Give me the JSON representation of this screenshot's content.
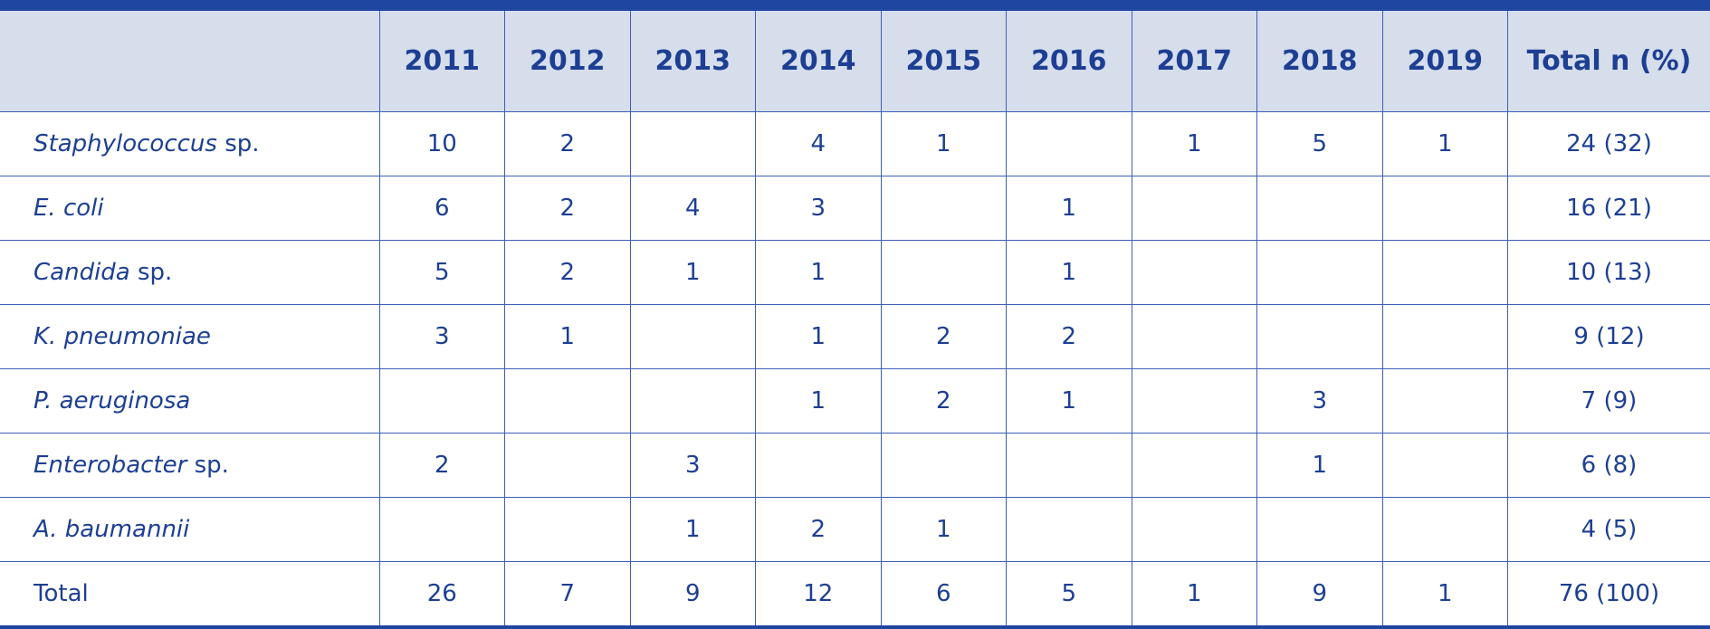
{
  "table": {
    "header": [
      "2011",
      "2012",
      "2013",
      "2014",
      "2015",
      "2016",
      "2017",
      "2018",
      "2019",
      "Total n (%)"
    ],
    "rows": [
      {
        "label": "Staphylococcus",
        "suffix": "sp.",
        "values": [
          10,
          2,
          null,
          4,
          1,
          null,
          1,
          5,
          1
        ],
        "total": "24 (32)"
      },
      {
        "label": "E. coli",
        "values": [
          6,
          2,
          4,
          3,
          null,
          1,
          null,
          null,
          null
        ],
        "total": "16 (21)"
      },
      {
        "label": "Candida",
        "suffix": "sp.",
        "values": [
          5,
          2,
          1,
          1,
          null,
          1,
          null,
          null,
          null
        ],
        "total": "10 (13)"
      },
      {
        "label": "K. pneumoniae",
        "values": [
          3,
          1,
          null,
          1,
          2,
          2,
          null,
          null,
          null
        ],
        "total": "9 (12)"
      },
      {
        "label": "P. aeruginosa",
        "values": [
          null,
          null,
          null,
          1,
          2,
          1,
          null,
          3,
          null
        ],
        "total": "7 (9)"
      },
      {
        "label": "Enterobacter",
        "suffix": "sp.",
        "values": [
          2,
          null,
          3,
          null,
          null,
          null,
          null,
          1,
          null
        ],
        "total": "6 (8)"
      },
      {
        "label": "A. baumannii",
        "values": [
          null,
          null,
          1,
          2,
          1,
          null,
          null,
          null,
          null
        ],
        "total": "4 (5)"
      }
    ],
    "total_row": {
      "label": "Total",
      "values": [
        26,
        7,
        9,
        12,
        6,
        5,
        1,
        9,
        1
      ],
      "total": "76 (100)"
    }
  }
}
